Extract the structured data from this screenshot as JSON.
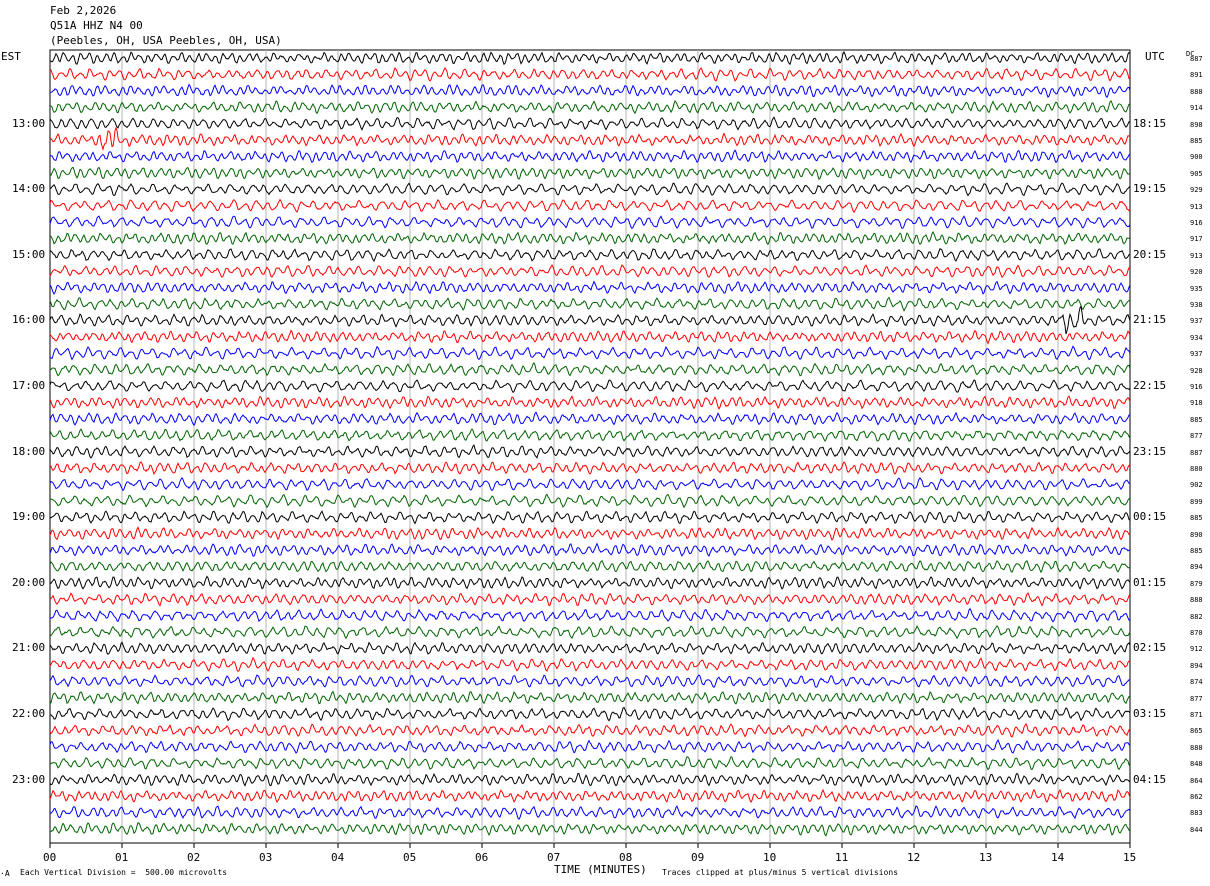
{
  "header": {
    "date": "Feb 2,2026",
    "station": "Q51A HHZ N4 00",
    "location": "(Peebles, OH, USA Peebles, OH, USA)"
  },
  "left_tz": "EST",
  "right_tz": "UTC",
  "dc_label": "DC",
  "footer": {
    "division": "Each Vertical Division =  500.00 microvolts",
    "clipped": "Traces clipped at plus/minus 5 vertical divisions",
    "mark": "·A"
  },
  "chart_data": {
    "type": "line",
    "title": "",
    "xlabel": "TIME (MINUTES)",
    "xlim": [
      0,
      15
    ],
    "x_ticks": [
      "00",
      "01",
      "02",
      "03",
      "04",
      "05",
      "06",
      "07",
      "08",
      "09",
      "10",
      "11",
      "12",
      "13",
      "14",
      "15"
    ],
    "rows_per_hour": 4,
    "minutes_per_row": 15,
    "trace_colors": [
      "#000000",
      "#ff0000",
      "#0000ff",
      "#006400"
    ],
    "left_hour_labels": [
      "13:00",
      "14:00",
      "15:00",
      "16:00",
      "17:00",
      "18:00",
      "19:00",
      "20:00",
      "21:00",
      "22:00",
      "23:00"
    ],
    "right_hour_labels": [
      "18:15",
      "19:15",
      "20:15",
      "21:15",
      "22:15",
      "23:15",
      "00:15",
      "01:15",
      "02:15",
      "03:15",
      "04:15"
    ],
    "dc_offsets": [
      887,
      891,
      888,
      914,
      898,
      885,
      900,
      905,
      929,
      913,
      916,
      917,
      913,
      920,
      935,
      938,
      937,
      934,
      937,
      928,
      916,
      918,
      885,
      877,
      887,
      880,
      902,
      899,
      885,
      890,
      885,
      894,
      879,
      888,
      882,
      870,
      912,
      894,
      874,
      877,
      871,
      865,
      888,
      848,
      864,
      862,
      883,
      844
    ],
    "events": [
      {
        "row": 5,
        "minute": 0.8,
        "note": "clipped burst"
      },
      {
        "row": 16,
        "minute": 14.2,
        "note": "small spike"
      }
    ]
  }
}
